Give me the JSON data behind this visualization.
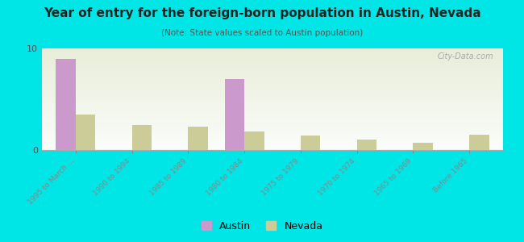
{
  "title": "Year of entry for the foreign-born population in Austin, Nevada",
  "subtitle": "(Note: State values scaled to Austin population)",
  "categories": [
    "1995 to March ...",
    "1990 to 1994",
    "1985 to 1989",
    "1980 to 1984",
    "1975 to 1979",
    "1970 to 1974",
    "1965 to 1969",
    "Before 1965"
  ],
  "austin_values": [
    9.0,
    0,
    0,
    7.0,
    0,
    0,
    0,
    0
  ],
  "nevada_values": [
    3.5,
    2.5,
    2.3,
    1.8,
    1.4,
    1.0,
    0.7,
    1.5
  ],
  "austin_color": "#cc99cc",
  "nevada_color": "#cccc99",
  "background_outer": "#00e5e5",
  "background_chart_top": "#e8eed8",
  "background_chart_bottom": "#f8faf0",
  "ylim": [
    0,
    10
  ],
  "yticks": [
    0,
    10
  ],
  "bar_width": 0.35,
  "watermark": "City-Data.com"
}
